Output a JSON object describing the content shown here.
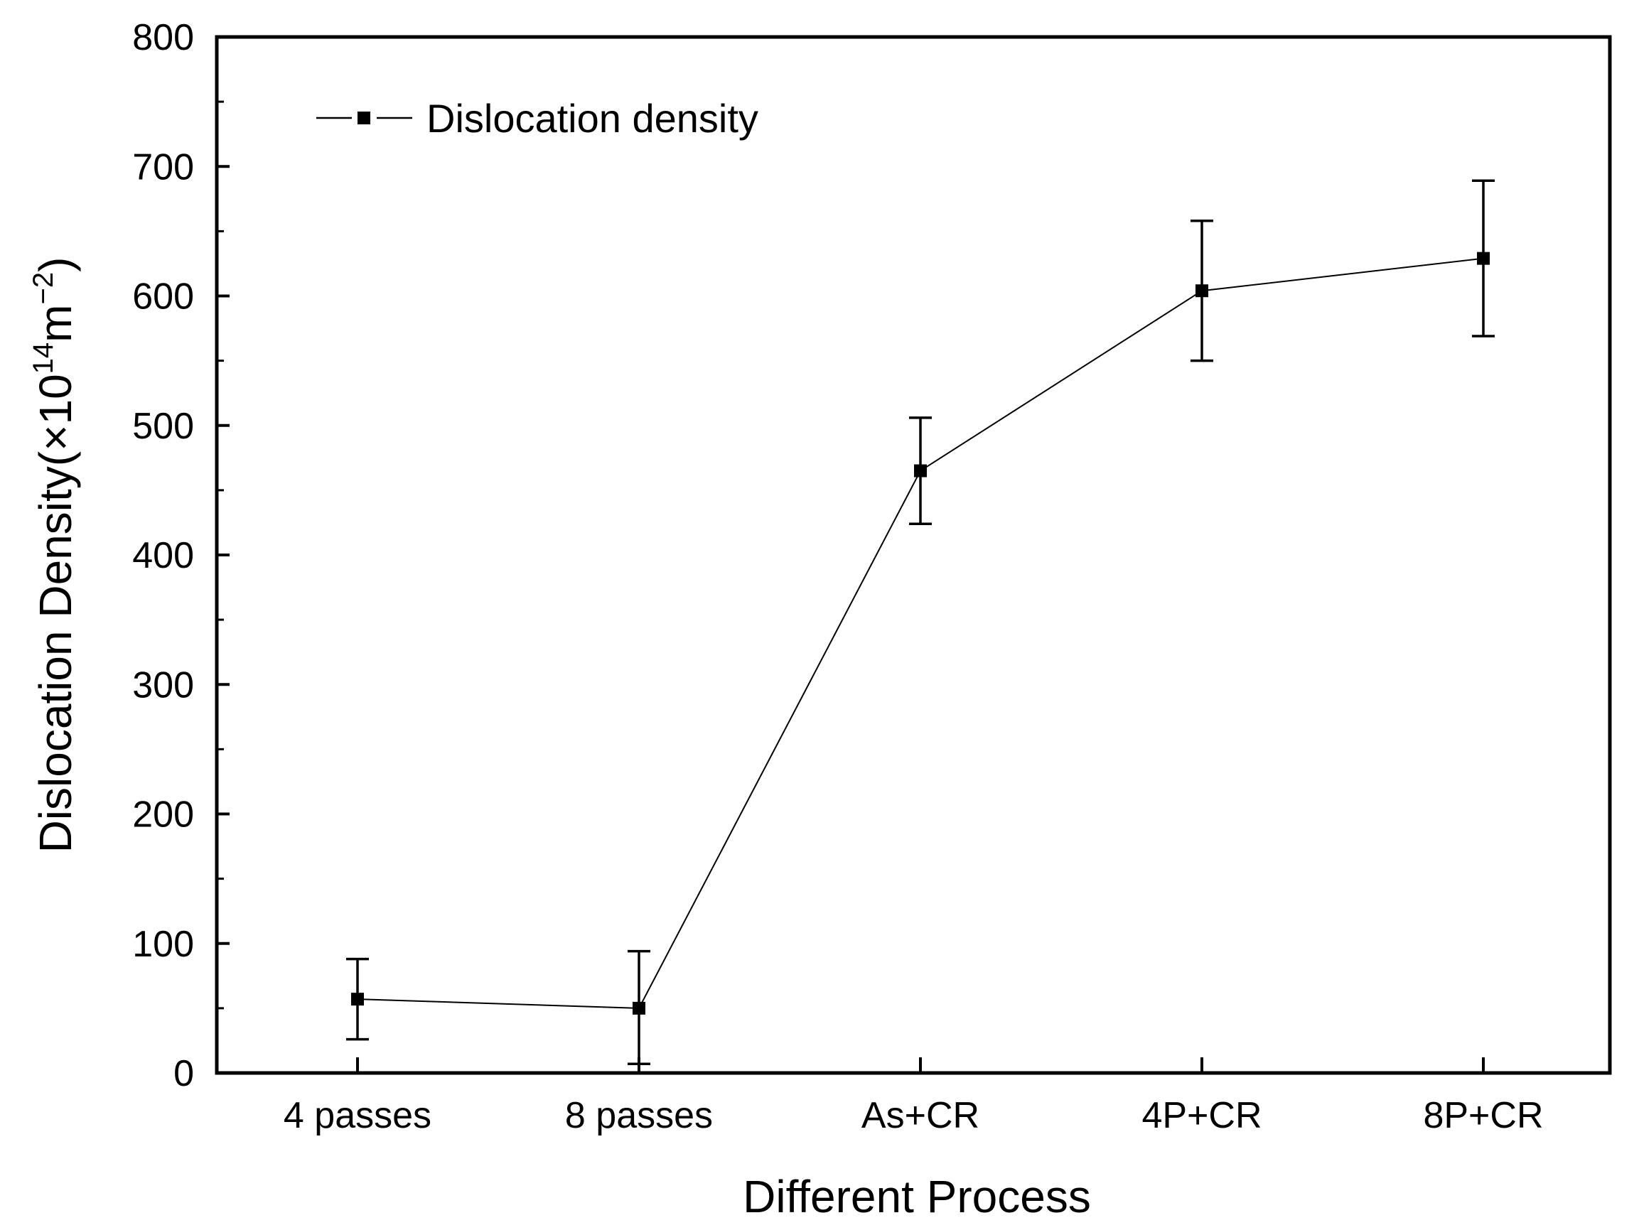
{
  "chart_data": {
    "type": "line",
    "categories": [
      "4 passes",
      "8 passes",
      "As+CR",
      "4P+CR",
      "8P+CR"
    ],
    "series": [
      {
        "name": "Dislocation density",
        "values": [
          57,
          50,
          465,
          604,
          629
        ],
        "error_low": [
          26,
          7,
          424,
          550,
          569
        ],
        "error_high": [
          88,
          94,
          506,
          658,
          689
        ]
      }
    ],
    "xlabel": "Different Process",
    "ylabel": {
      "main": "Dislocation Density(",
      "times": "×10",
      "exp1": "14",
      "unit": "m",
      "exp2": "−2",
      "close": ")"
    },
    "ylim": [
      0,
      800
    ],
    "yticks": [
      0,
      100,
      200,
      300,
      400,
      500,
      600,
      700,
      800
    ],
    "legend_position": "top-left",
    "grid": false,
    "colors": {
      "line": "#000000",
      "marker": "#000000"
    }
  }
}
